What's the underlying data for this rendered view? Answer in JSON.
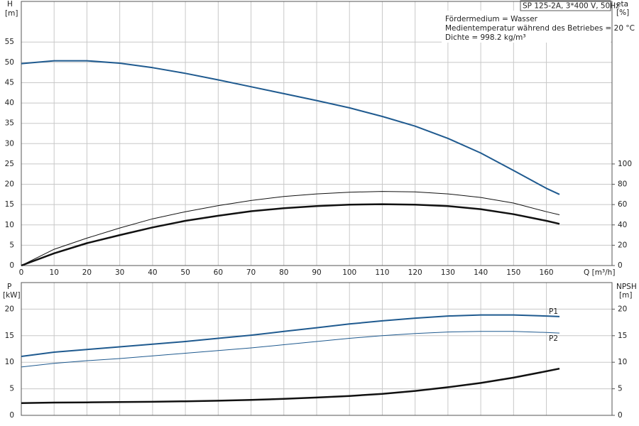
{
  "chart_data": [
    {
      "type": "line",
      "model": "SP 125-2A, 3*400 V, 50Hz",
      "notes": [
        "Fördermedium = Wasser",
        "Medientemperatur während des Betriebes = 20 °C",
        "Dichte = 998.2 kg/m³"
      ],
      "y_label": "H",
      "y_unit": "[m]",
      "y2_label": "eta",
      "y2_unit": "[%]",
      "x_label": "Q [m³/h]",
      "xlim": [
        0,
        180
      ],
      "xticks": [
        0,
        10,
        20,
        30,
        40,
        50,
        60,
        70,
        80,
        90,
        100,
        110,
        120,
        130,
        140,
        150,
        160
      ],
      "ylim": [
        0,
        65
      ],
      "yticks": [
        0,
        5,
        10,
        15,
        20,
        25,
        30,
        35,
        40,
        45,
        50,
        55
      ],
      "y2lim": [
        0,
        260
      ],
      "y2ticks": [
        0,
        20,
        40,
        60,
        80,
        100
      ],
      "grid": true,
      "x": [
        0,
        10,
        20,
        30,
        40,
        50,
        60,
        70,
        80,
        90,
        100,
        110,
        120,
        130,
        140,
        150,
        160,
        164
      ],
      "series": [
        {
          "color": "#1f5a8f",
          "line_width": 2,
          "values": [
            49.7,
            50.4,
            50.4,
            49.8,
            48.7,
            47.3,
            45.7,
            44,
            42.3,
            40.6,
            38.8,
            36.7,
            34.3,
            31.3,
            27.7,
            23.4,
            19,
            17.5
          ]
        },
        {
          "color": "#111111",
          "line_width": 1,
          "axis": "y2",
          "values": [
            0,
            16,
            27,
            37,
            46,
            53,
            59,
            64,
            68,
            70.5,
            72.2,
            73,
            72.5,
            70.5,
            67,
            61.5,
            53,
            50
          ]
        },
        {
          "color": "#111111",
          "line_width": 2.5,
          "axis": "y2",
          "values": [
            0,
            12,
            22,
            30,
            37.5,
            44,
            49,
            53.5,
            56.5,
            58.5,
            60,
            60.4,
            60,
            58.5,
            55.5,
            50.5,
            44,
            41
          ]
        }
      ]
    },
    {
      "type": "line",
      "y_label": "P",
      "y_unit": "[kW]",
      "y2_label": "NPSH",
      "y2_unit": "[m]",
      "xlim": [
        0,
        180
      ],
      "ylim": [
        0,
        25
      ],
      "yticks": [
        0,
        5,
        10,
        15,
        20
      ],
      "y2lim": [
        0,
        25
      ],
      "y2ticks": [
        0,
        5,
        10,
        15,
        20
      ],
      "grid": true,
      "x": [
        0,
        10,
        20,
        30,
        40,
        50,
        60,
        70,
        80,
        90,
        100,
        110,
        120,
        130,
        140,
        150,
        160,
        164
      ],
      "series": [
        {
          "name": "P1",
          "color": "#1f5a8f",
          "line_width": 2,
          "values": [
            11.1,
            11.9,
            12.4,
            12.9,
            13.4,
            13.9,
            14.5,
            15.1,
            15.8,
            16.5,
            17.2,
            17.8,
            18.3,
            18.7,
            18.9,
            18.9,
            18.7,
            18.6
          ]
        },
        {
          "name": "P2",
          "color": "#1f5a8f",
          "line_width": 1,
          "values": [
            9.1,
            9.8,
            10.3,
            10.7,
            11.2,
            11.7,
            12.2,
            12.7,
            13.3,
            13.9,
            14.5,
            15,
            15.4,
            15.7,
            15.8,
            15.8,
            15.6,
            15.5
          ]
        },
        {
          "color": "#111111",
          "line_width": 2.5,
          "axis": "y2",
          "values": [
            2.3,
            2.4,
            2.45,
            2.5,
            2.55,
            2.65,
            2.75,
            2.9,
            3.1,
            3.35,
            3.65,
            4.05,
            4.6,
            5.3,
            6.1,
            7.1,
            8.3,
            8.8
          ]
        }
      ]
    }
  ]
}
